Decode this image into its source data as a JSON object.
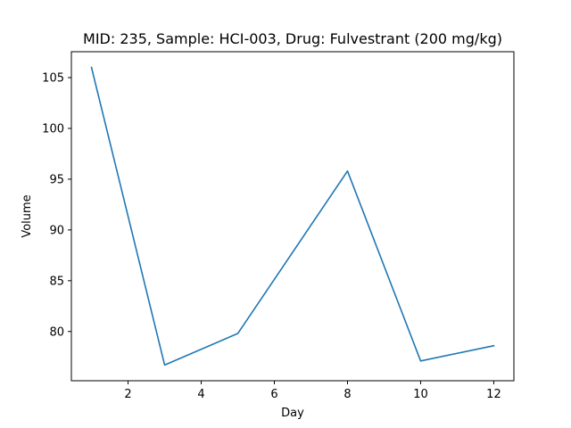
{
  "chart_data": {
    "type": "line",
    "title": "MID: 235, Sample: HCI-003, Drug: Fulvestrant (200 mg/kg)",
    "xlabel": "Day",
    "ylabel": "Volume",
    "xlim": [
      0.45,
      12.55
    ],
    "ylim": [
      75.15,
      107.55
    ],
    "x_ticks": [
      2,
      4,
      6,
      8,
      10,
      12
    ],
    "y_ticks": [
      80,
      85,
      90,
      95,
      100,
      105
    ],
    "grid": false,
    "legend": "none",
    "series": [
      {
        "color": "#1f77b4",
        "x": [
          1,
          3,
          5,
          8,
          10,
          12
        ],
        "y": [
          106.0,
          76.7,
          79.8,
          95.8,
          77.1,
          78.6
        ]
      }
    ]
  }
}
